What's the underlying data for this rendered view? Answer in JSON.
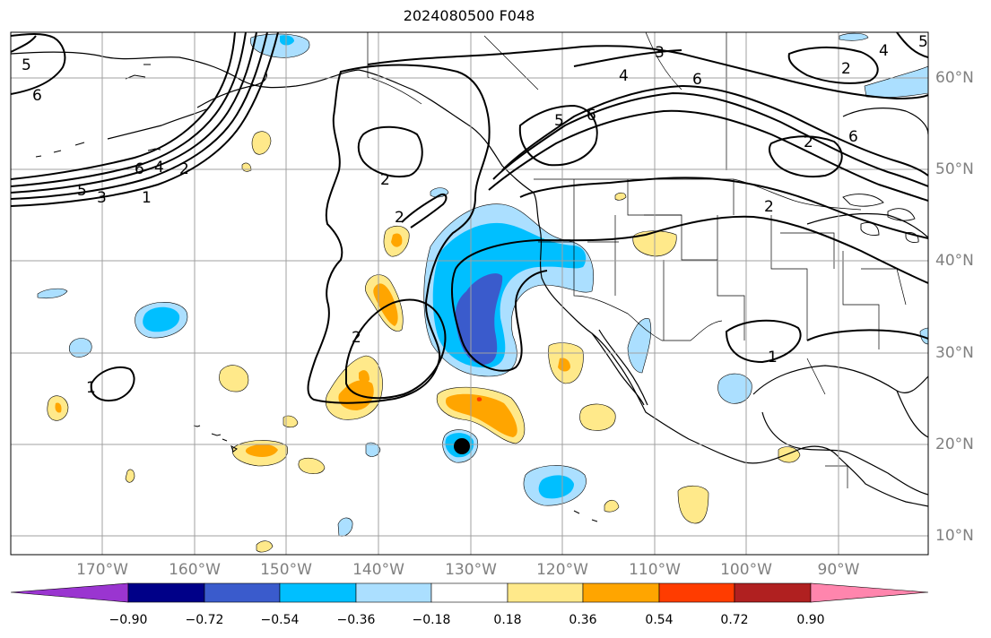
{
  "title": "2024080500 F048",
  "lon_labels": [
    "170°W",
    "160°W",
    "150°W",
    "140°W",
    "130°W",
    "120°W",
    "110°W",
    "100°W",
    "90°W"
  ],
  "lat_labels": [
    "60°N",
    "50°N",
    "40°N",
    "30°N",
    "20°N",
    "10°N"
  ],
  "colorbar": {
    "ticks": [
      "−0.90",
      "−0.72",
      "−0.54",
      "−0.36",
      "−0.18",
      "0.18",
      "0.36",
      "0.54",
      "0.72",
      "0.90"
    ],
    "colors": [
      "#9a35d0",
      "#000088",
      "#3a5bcc",
      "#00bfff",
      "#abdfff",
      "#ffffff",
      "#ffe98a",
      "#ffa500",
      "#ff3c00",
      "#b02020",
      "#ff85ad"
    ]
  },
  "contour_labels": [
    "5",
    "6",
    "6",
    "4",
    "2",
    "5",
    "3",
    "1",
    "2",
    "2",
    "2",
    "1",
    "3",
    "4",
    "6",
    "5",
    "6",
    "2",
    "5",
    "4",
    "6",
    "2",
    "2",
    "1"
  ],
  "marker": "storm-center"
}
